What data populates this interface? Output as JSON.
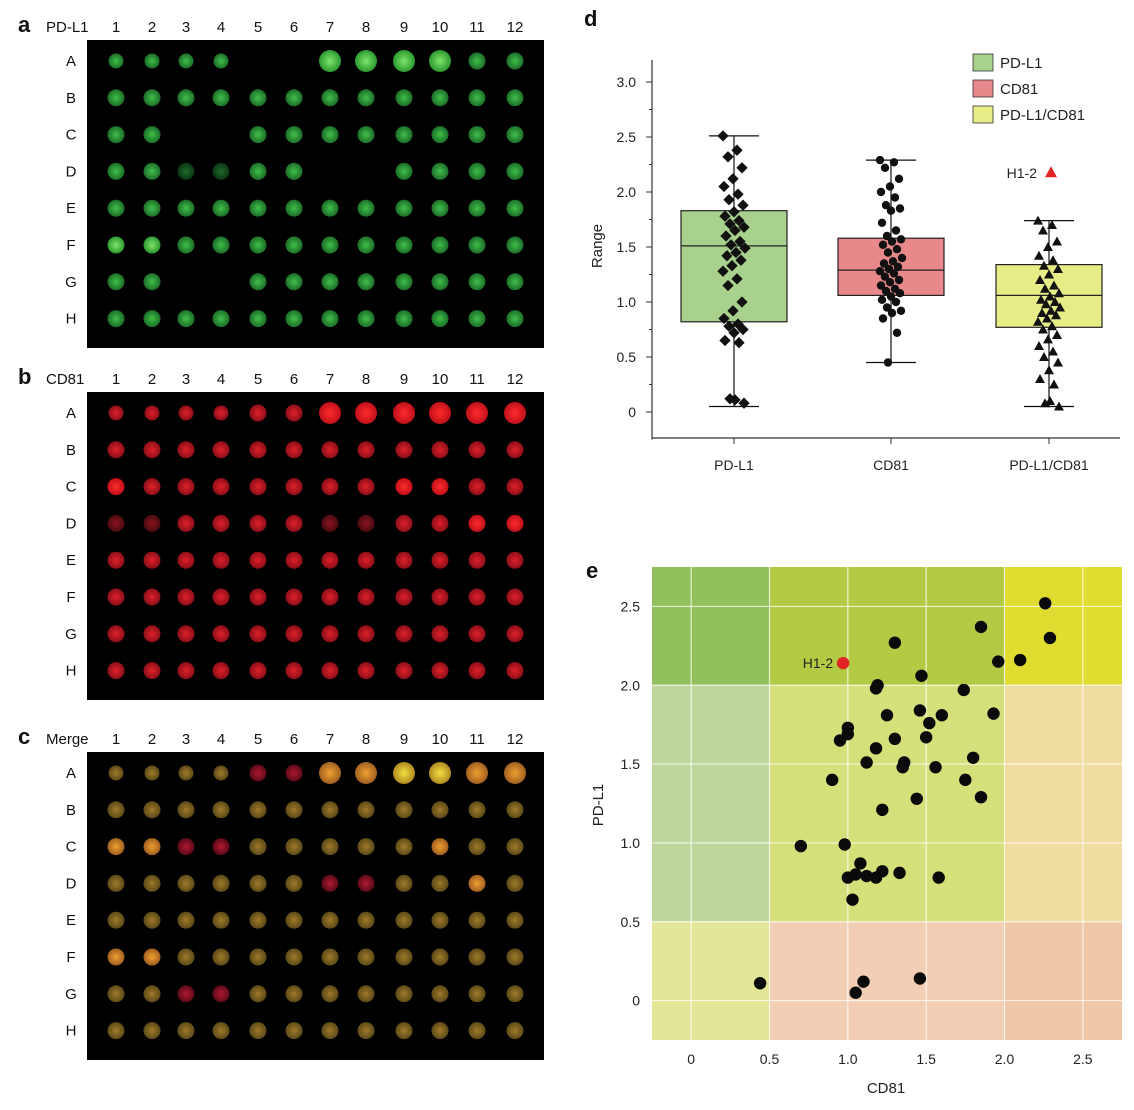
{
  "panels": {
    "a": {
      "letter": "a",
      "label": "PD-L1",
      "color": "green"
    },
    "b": {
      "letter": "b",
      "label": "CD81",
      "color": "red"
    },
    "c": {
      "letter": "c",
      "label": "Merge",
      "color": "merge"
    }
  },
  "plate": {
    "columns": [
      "1",
      "2",
      "3",
      "4",
      "5",
      "6",
      "7",
      "8",
      "9",
      "10",
      "11",
      "12"
    ],
    "rows": [
      "A",
      "B",
      "C",
      "D",
      "E",
      "F",
      "G",
      "H"
    ]
  },
  "chart_data": [
    {
      "panel": "d",
      "type": "box",
      "letter": "d",
      "ylabel": "Range",
      "ylim": [
        0,
        3.0
      ],
      "yticks": [
        "0",
        "0.5",
        "1.0",
        "1.5",
        "2.0",
        "2.5",
        "3.0"
      ],
      "categories": [
        "PD-L1",
        "CD81",
        "PD-L1/CD81"
      ],
      "legend": [
        "PD-L1",
        "CD81",
        "PD-L1/CD81"
      ],
      "legend_position": "top-right",
      "colors": [
        "#a9d18e",
        "#e8888a",
        "#e6ec86"
      ],
      "boxes": [
        {
          "name": "PD-L1",
          "min": 0.05,
          "q1": 0.82,
          "median": 1.51,
          "q3": 1.83,
          "max": 2.51
        },
        {
          "name": "CD81",
          "min": 0.45,
          "q1": 1.06,
          "median": 1.29,
          "q3": 1.58,
          "max": 2.29
        },
        {
          "name": "PD-L1/CD81",
          "min": 0.05,
          "q1": 0.77,
          "median": 1.06,
          "q3": 1.34,
          "max": 1.74
        }
      ],
      "points": {
        "PD-L1": [
          2.51,
          2.38,
          2.32,
          2.22,
          2.12,
          2.05,
          1.98,
          1.93,
          1.88,
          1.82,
          1.78,
          1.74,
          1.71,
          1.68,
          1.65,
          1.6,
          1.55,
          1.52,
          1.49,
          1.45,
          1.42,
          1.38,
          1.33,
          1.28,
          1.21,
          1.15,
          1.0,
          0.92,
          0.85,
          0.8,
          0.78,
          0.75,
          0.72,
          0.65,
          0.63,
          0.12,
          0.08,
          0.11
        ],
        "CD81": [
          2.29,
          2.27,
          2.22,
          2.12,
          2.05,
          2.0,
          1.95,
          1.88,
          1.85,
          1.83,
          1.72,
          1.65,
          1.6,
          1.57,
          1.55,
          1.52,
          1.48,
          1.45,
          1.4,
          1.37,
          1.35,
          1.32,
          1.3,
          1.28,
          1.26,
          1.23,
          1.2,
          1.18,
          1.15,
          1.12,
          1.1,
          1.08,
          1.05,
          1.02,
          1.0,
          0.95,
          0.92,
          0.9,
          0.85,
          0.72,
          0.45
        ],
        "PD-L1/CD81": [
          1.74,
          1.7,
          1.65,
          1.55,
          1.5,
          1.42,
          1.38,
          1.33,
          1.3,
          1.25,
          1.2,
          1.15,
          1.12,
          1.08,
          1.05,
          1.02,
          1.0,
          0.98,
          0.95,
          0.92,
          0.9,
          0.88,
          0.85,
          0.82,
          0.78,
          0.75,
          0.7,
          0.66,
          0.6,
          0.55,
          0.5,
          0.45,
          0.38,
          0.3,
          0.25,
          0.08,
          0.05,
          0.1
        ]
      },
      "outlier": {
        "label": "H1-2",
        "category": "PD-L1/CD81",
        "value": 2.18,
        "color": "#e02424"
      }
    },
    {
      "panel": "e",
      "type": "scatter",
      "letter": "e",
      "xlabel": "CD81",
      "ylabel": "PD-L1",
      "xlim": [
        -0.25,
        2.75
      ],
      "ylim": [
        -0.25,
        2.75
      ],
      "xticks": [
        "0",
        "0.5",
        "1.0",
        "1.5",
        "2.0",
        "2.5"
      ],
      "yticks": [
        "0",
        "0.5",
        "1.0",
        "1.5",
        "2.0",
        "2.5"
      ],
      "grid": true,
      "highlight": {
        "label": "H1-2",
        "x": 0.97,
        "y": 2.14,
        "color": "#e02424"
      },
      "points": [
        [
          0.44,
          0.11
        ],
        [
          1.05,
          0.05
        ],
        [
          1.1,
          0.12
        ],
        [
          1.46,
          0.14
        ],
        [
          0.7,
          0.98
        ],
        [
          0.98,
          0.99
        ],
        [
          1.0,
          0.78
        ],
        [
          1.03,
          0.64
        ],
        [
          1.05,
          0.8
        ],
        [
          1.08,
          0.87
        ],
        [
          1.12,
          0.79
        ],
        [
          1.18,
          0.78
        ],
        [
          1.22,
          0.82
        ],
        [
          1.33,
          0.81
        ],
        [
          1.58,
          0.78
        ],
        [
          0.9,
          1.4
        ],
        [
          0.95,
          1.65
        ],
        [
          1.0,
          1.73
        ],
        [
          1.0,
          1.69
        ],
        [
          1.12,
          1.51
        ],
        [
          1.18,
          1.6
        ],
        [
          1.22,
          1.21
        ],
        [
          1.25,
          1.81
        ],
        [
          1.3,
          1.66
        ],
        [
          1.35,
          1.48
        ],
        [
          1.36,
          1.51
        ],
        [
          1.44,
          1.28
        ],
        [
          1.46,
          1.84
        ],
        [
          1.5,
          1.67
        ],
        [
          1.52,
          1.76
        ],
        [
          1.56,
          1.48
        ],
        [
          1.6,
          1.81
        ],
        [
          1.75,
          1.4
        ],
        [
          1.8,
          1.54
        ],
        [
          1.85,
          1.29
        ],
        [
          1.93,
          1.82
        ],
        [
          1.18,
          1.98
        ],
        [
          1.19,
          2.0
        ],
        [
          1.3,
          2.27
        ],
        [
          1.47,
          2.06
        ],
        [
          1.74,
          1.97
        ],
        [
          1.85,
          2.37
        ],
        [
          1.96,
          2.15
        ],
        [
          2.1,
          2.16
        ],
        [
          2.26,
          2.52
        ],
        [
          2.29,
          2.3
        ]
      ],
      "zones": [
        {
          "x0": -0.25,
          "x1": 0.5,
          "y0": 2.0,
          "y1": 2.75,
          "color": "#92c05c"
        },
        {
          "x0": 0.5,
          "x1": 2.0,
          "y0": 2.0,
          "y1": 2.75,
          "color": "#b3cb44"
        },
        {
          "x0": 2.0,
          "x1": 2.75,
          "y0": 2.0,
          "y1": 2.75,
          "color": "#e0dc30"
        },
        {
          "x0": -0.25,
          "x1": 0.5,
          "y0": 0.5,
          "y1": 2.0,
          "color": "#bed69c"
        },
        {
          "x0": 0.5,
          "x1": 2.0,
          "y0": 0.5,
          "y1": 2.0,
          "color": "#d5e07a"
        },
        {
          "x0": 2.0,
          "x1": 2.75,
          "y0": 0.5,
          "y1": 2.0,
          "color": "#eedca0"
        },
        {
          "x0": -0.25,
          "x1": 0.5,
          "y0": -0.25,
          "y1": 0.5,
          "color": "#e2e696"
        },
        {
          "x0": 0.5,
          "x1": 2.0,
          "y0": -0.25,
          "y1": 0.5,
          "color": "#f2cfb4"
        },
        {
          "x0": 2.0,
          "x1": 2.75,
          "y0": -0.25,
          "y1": 0.5,
          "color": "#efc6a6"
        }
      ]
    }
  ]
}
